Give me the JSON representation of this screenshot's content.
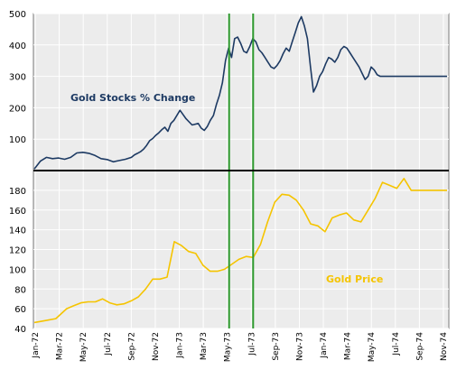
{
  "chart_data": [
    {
      "type": "line",
      "annotation": "Gold Stocks % Change",
      "ylim": [
        0,
        500
      ],
      "yticks": [
        "100",
        "200",
        "300",
        "400",
        "500"
      ],
      "colors": {
        "line": "#1d3a63",
        "background": "#ececec",
        "grid": "#ffffff"
      },
      "grid": true,
      "series": [
        {
          "x": [
            0,
            2,
            4,
            6,
            8,
            10,
            12,
            14,
            16,
            18,
            20,
            22,
            24,
            26,
            28,
            30,
            32,
            33,
            34,
            35,
            36,
            37,
            38,
            39,
            40,
            41,
            42,
            43,
            44,
            45,
            46,
            48,
            50,
            52,
            54,
            55,
            56,
            57,
            58,
            59,
            60,
            61,
            62,
            63,
            64,
            65,
            66,
            67,
            68,
            69,
            70,
            71,
            72,
            73,
            74,
            75,
            76,
            77,
            78,
            79,
            80,
            81,
            82,
            83,
            84,
            85,
            86,
            87,
            88,
            89,
            90,
            91,
            92,
            93,
            94,
            95,
            96,
            97,
            98,
            99,
            100,
            101,
            102,
            103,
            104,
            105,
            106,
            107,
            108,
            109,
            110,
            111,
            112,
            113,
            114,
            115,
            116,
            117,
            118,
            119,
            120,
            121,
            122,
            123,
            124,
            125,
            126,
            127,
            128,
            129,
            130,
            131,
            132,
            133,
            134,
            135,
            136
          ],
          "y": [
            5,
            30,
            42,
            38,
            40,
            36,
            42,
            56,
            58,
            55,
            48,
            38,
            35,
            28,
            32,
            36,
            42,
            50,
            55,
            60,
            68,
            80,
            95,
            102,
            112,
            120,
            130,
            138,
            125,
            150,
            160,
            192,
            165,
            145,
            150,
            135,
            128,
            140,
            160,
            175,
            210,
            240,
            280,
            350,
            390,
            360,
            420,
            425,
            405,
            380,
            375,
            395,
            420,
            410,
            385,
            375,
            360,
            345,
            330,
            325,
            335,
            350,
            372,
            390,
            380,
            410,
            440,
            470,
            490,
            460,
            420,
            330,
            250,
            270,
            300,
            315,
            340,
            360,
            355,
            345,
            360,
            385,
            395,
            390,
            375,
            360,
            345,
            330,
            310,
            290,
            300,
            330,
            320,
            305,
            300,
            300,
            300,
            300,
            300,
            300,
            300,
            300,
            300,
            300,
            300,
            300,
            300,
            300,
            300,
            300,
            300,
            300,
            300,
            300,
            300,
            300,
            300
          ]
        }
      ]
    },
    {
      "type": "line",
      "annotation": "Gold Price",
      "ylim": [
        40,
        200
      ],
      "yticks": [
        "40",
        "60",
        "80",
        "100",
        "120",
        "140",
        "160",
        "180"
      ],
      "colors": {
        "line": "#f5c400",
        "background": "#ececec",
        "grid": "#ffffff"
      },
      "grid": true,
      "series": [
        {
          "x": [
            0,
            3,
            6,
            9,
            11,
            13,
            15,
            17,
            19,
            21,
            23,
            25,
            27,
            29,
            31,
            33,
            35,
            37,
            39,
            41,
            43,
            45,
            47,
            49,
            51,
            53,
            55,
            57,
            59,
            61,
            63,
            65,
            67,
            69,
            71,
            73,
            75,
            77,
            79,
            81,
            83,
            85,
            87,
            89,
            91,
            93,
            95,
            97,
            99,
            101,
            103,
            105,
            107,
            109,
            111,
            113,
            115
          ],
          "y": [
            46,
            48,
            50,
            60,
            63,
            66,
            67,
            67,
            70,
            66,
            64,
            65,
            68,
            72,
            80,
            90,
            90,
            92,
            128,
            124,
            118,
            116,
            104,
            98,
            98,
            100,
            105,
            110,
            113,
            112,
            125,
            148,
            168,
            176,
            175,
            170,
            160,
            146,
            144,
            138,
            152,
            155,
            157,
            150,
            148,
            160,
            172,
            188,
            185,
            182,
            192,
            180,
            180,
            180,
            180,
            180,
            180
          ]
        }
      ]
    }
  ],
  "x_axis": {
    "labels": [
      "Jan-72",
      "Mar-72",
      "May-72",
      "Jul-72",
      "Sep-72",
      "Nov-72",
      "Jan-73",
      "Mar-73",
      "May-73",
      "Jul-73",
      "Sep-73",
      "Nov-73",
      "Jan-74",
      "Mar-74",
      "May-74",
      "Jul-74",
      "Sep-74",
      "Nov-74"
    ]
  },
  "markers": {
    "color": "#2e9a2e",
    "at": [
      "May-73",
      "Jul-73"
    ]
  }
}
